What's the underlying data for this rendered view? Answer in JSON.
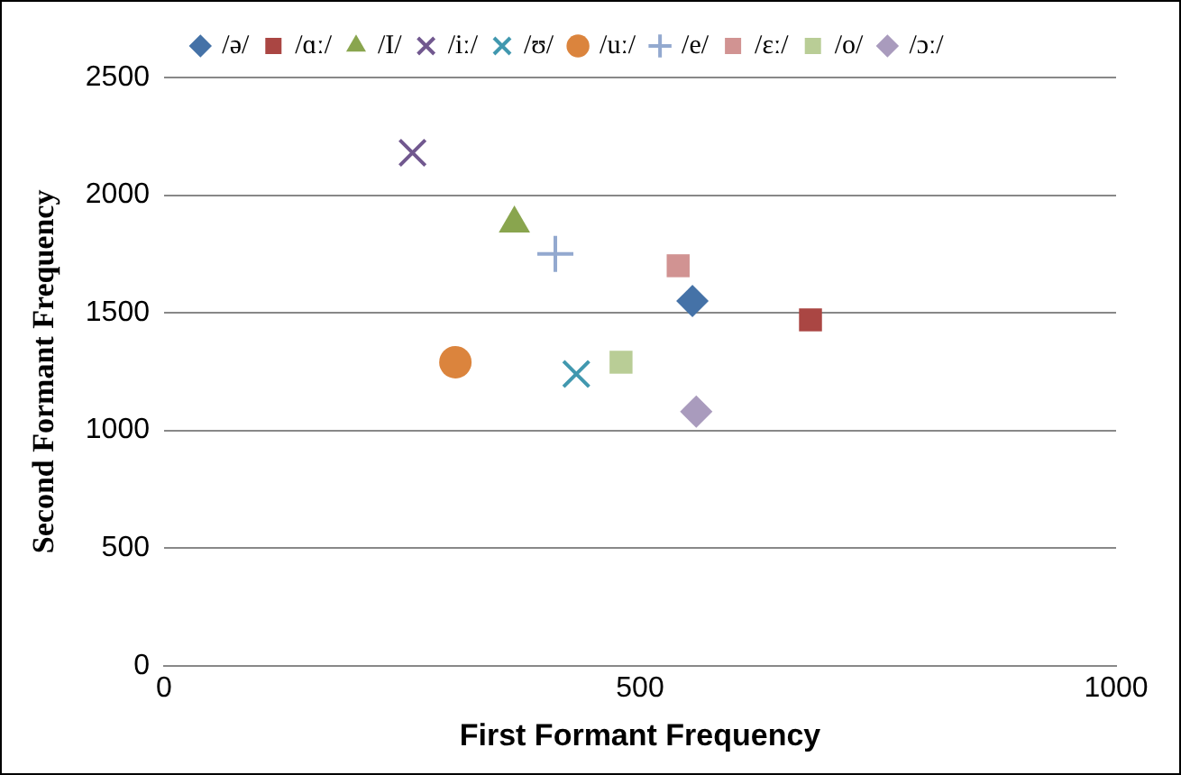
{
  "chart_data": {
    "type": "scatter",
    "xlabel": "First Formant Frequency",
    "ylabel": "Second Formant Frequency",
    "xlim": [
      0,
      1000
    ],
    "xticks": [
      0,
      500,
      1000
    ],
    "ylim": [
      0,
      2500
    ],
    "yticks": [
      0,
      500,
      1000,
      1500,
      2000,
      2500
    ],
    "grid": "y",
    "legend": "top",
    "series": [
      {
        "name": "/ə/",
        "color": "#4572a7",
        "marker": "diamond",
        "x": [
          555
        ],
        "values": [
          1550
        ]
      },
      {
        "name": "/ɑː/",
        "color": "#aa4643",
        "marker": "square",
        "x": [
          679
        ],
        "values": [
          1470
        ]
      },
      {
        "name": "/I/",
        "color": "#89a54e",
        "marker": "triangle",
        "x": [
          368
        ],
        "values": [
          1880
        ]
      },
      {
        "name": "/iː/",
        "color": "#71588f",
        "marker": "cross",
        "x": [
          261
        ],
        "values": [
          2180
        ]
      },
      {
        "name": "/ʊ/",
        "color": "#4198af",
        "marker": "cross",
        "x": [
          433
        ],
        "values": [
          1240
        ]
      },
      {
        "name": "/uː/",
        "color": "#db843d",
        "marker": "circle",
        "x": [
          306
        ],
        "values": [
          1290
        ]
      },
      {
        "name": "/e/",
        "color": "#93a9cf",
        "marker": "plus",
        "x": [
          411
        ],
        "values": [
          1750
        ]
      },
      {
        "name": "/ɛː/",
        "color": "#d19392",
        "marker": "square",
        "x": [
          540
        ],
        "values": [
          1700
        ]
      },
      {
        "name": "/o/",
        "color": "#b9cd96",
        "marker": "square",
        "x": [
          480
        ],
        "values": [
          1290
        ]
      },
      {
        "name": "/ɔː/",
        "color": "#a99bbd",
        "marker": "diamond",
        "x": [
          559
        ],
        "values": [
          1080
        ]
      }
    ]
  }
}
